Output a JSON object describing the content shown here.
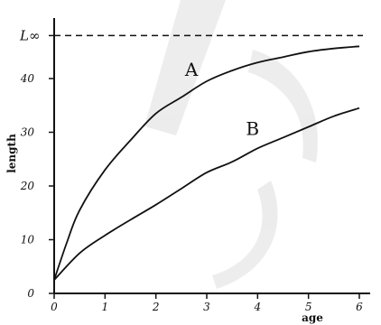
{
  "chart_data": {
    "type": "line",
    "xlabel": "age",
    "ylabel": "length",
    "xlim": [
      0,
      6.3
    ],
    "ylim": [
      0,
      50
    ],
    "x_ticks": [
      0,
      1,
      2,
      3,
      4,
      5,
      6
    ],
    "y_ticks": [
      0,
      10,
      20,
      30,
      40
    ],
    "asymptote": {
      "label": "L∞",
      "value": 48,
      "style": "dashed"
    },
    "grid": false,
    "legend": "none",
    "series": [
      {
        "name": "A",
        "x": [
          0,
          0.25,
          0.5,
          1,
          1.5,
          2,
          2.5,
          3,
          3.5,
          4,
          4.5,
          5,
          5.5,
          6
        ],
        "y": [
          2.5,
          9.5,
          15.5,
          23,
          28.5,
          33.5,
          36.5,
          39.5,
          41.5,
          43,
          44,
          45,
          45.6,
          46
        ]
      },
      {
        "name": "B",
        "x": [
          0,
          0.5,
          1,
          1.5,
          2,
          2.5,
          3,
          3.5,
          4,
          4.5,
          5,
          5.5,
          6
        ],
        "y": [
          2.5,
          7.5,
          10.8,
          13.7,
          16.5,
          19.5,
          22.5,
          24.5,
          27,
          29,
          31,
          33,
          34.5
        ]
      }
    ]
  }
}
